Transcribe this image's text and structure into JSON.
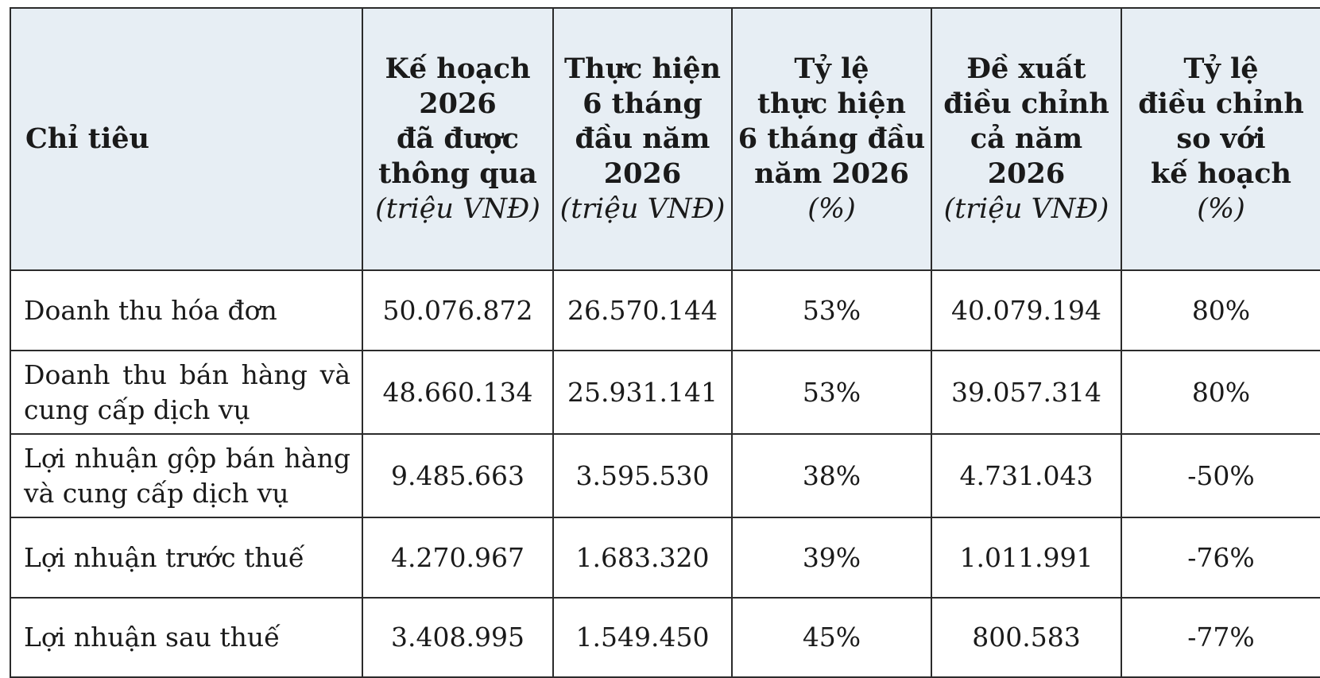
{
  "table": {
    "headers": [
      {
        "lines": [
          "Chỉ tiêu"
        ],
        "unit": ""
      },
      {
        "lines": [
          "Kế hoạch",
          "2026",
          "đã được",
          "thông qua"
        ],
        "unit": "(triệu VNĐ)"
      },
      {
        "lines": [
          "Thực hiện",
          "6 tháng",
          "đầu năm",
          "2026"
        ],
        "unit": "(triệu VNĐ)"
      },
      {
        "lines": [
          "Tỷ lệ",
          "thực hiện",
          "6 tháng đầu",
          "năm 2026"
        ],
        "unit": "(%)"
      },
      {
        "lines": [
          "Đề xuất",
          "điều chỉnh",
          "cả năm 2026"
        ],
        "unit": "(triệu VNĐ)"
      },
      {
        "lines": [
          "Tỷ lệ",
          "điều chỉnh",
          "so với",
          "kế hoạch"
        ],
        "unit": "(%)"
      }
    ],
    "rows": [
      {
        "label": "Doanh thu hóa đơn",
        "plan": "50.076.872",
        "actual_6m": "26.570.144",
        "rate_6m": "53%",
        "proposed": "40.079.194",
        "adj_rate": "80%"
      },
      {
        "label": "Doanh thu bán hàng và cung cấp dịch vụ",
        "plan": "48.660.134",
        "actual_6m": "25.931.141",
        "rate_6m": "53%",
        "proposed": "39.057.314",
        "adj_rate": "80%"
      },
      {
        "label": "Lợi nhuận gộp bán hàng và cung cấp dịch vụ",
        "plan": "9.485.663",
        "actual_6m": "3.595.530",
        "rate_6m": "38%",
        "proposed": "4.731.043",
        "adj_rate": "-50%"
      },
      {
        "label": "Lợi nhuận trước thuế",
        "plan": "4.270.967",
        "actual_6m": "1.683.320",
        "rate_6m": "39%",
        "proposed": "1.011.991",
        "adj_rate": "-76%"
      },
      {
        "label": "Lợi nhuận sau thuế",
        "plan": "3.408.995",
        "actual_6m": "1.549.450",
        "rate_6m": "45%",
        "proposed": "800.583",
        "adj_rate": "-77%"
      }
    ]
  }
}
